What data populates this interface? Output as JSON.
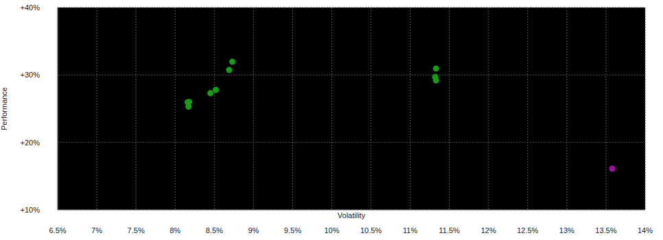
{
  "chart_data": {
    "type": "scatter",
    "x_label": "Volatility",
    "y_label": "Performance",
    "x": [
      8.16,
      8.18,
      8.17,
      8.45,
      8.52,
      8.69,
      8.73,
      11.33,
      11.32,
      11.33,
      13.58
    ],
    "values": [
      25.97,
      26.0,
      25.3,
      27.3,
      27.8,
      30.75,
      31.97,
      30.96,
      29.7,
      29.2,
      16.1
    ],
    "colors": [
      "#1a9a1a",
      "#1a9a1a",
      "#1a9a1a",
      "#1a9a1a",
      "#1a9a1a",
      "#1a9a1a",
      "#1a9a1a",
      "#1a9a1a",
      "#1a9a1a",
      "#1a9a1a",
      "#a0109f"
    ],
    "xlim": [
      6.5,
      14
    ],
    "xticks": [
      {
        "value": 6.5,
        "label": "6.5%"
      },
      {
        "value": 7,
        "label": "7%"
      },
      {
        "value": 7.5,
        "label": "7.5%"
      },
      {
        "value": 8,
        "label": "8%"
      },
      {
        "value": 8.5,
        "label": "8.5%"
      },
      {
        "value": 9,
        "label": "9%"
      },
      {
        "value": 9.5,
        "label": "9.5%"
      },
      {
        "value": 10,
        "label": "10%"
      },
      {
        "value": 10.5,
        "label": "10.5%"
      },
      {
        "value": 11,
        "label": "11%"
      },
      {
        "value": 11.5,
        "label": "11.5%"
      },
      {
        "value": 12,
        "label": "12%"
      },
      {
        "value": 12.5,
        "label": "12.5%"
      },
      {
        "value": 13,
        "label": "13%"
      },
      {
        "value": 13.5,
        "label": "13.5%"
      },
      {
        "value": 14,
        "label": "14%"
      }
    ],
    "ylim": [
      10,
      40
    ],
    "yticks": [
      {
        "value": 10,
        "label": "+10%"
      },
      {
        "value": 20,
        "label": "+20%"
      },
      {
        "value": 30,
        "label": "+30%"
      },
      {
        "value": 40,
        "label": "+40%"
      }
    ],
    "grid": true
  }
}
